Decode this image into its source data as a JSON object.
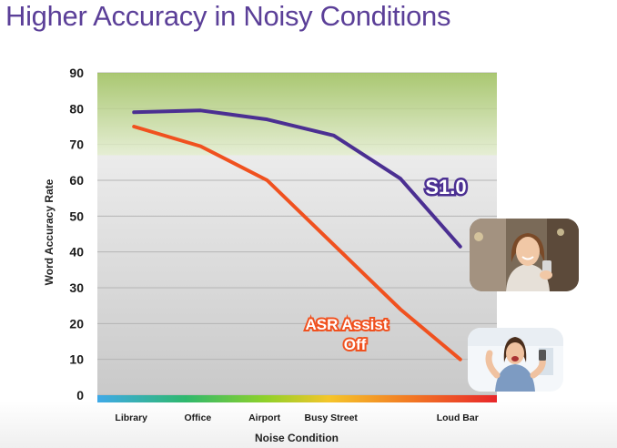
{
  "slide": {
    "title": "Higher Accuracy in Noisy Conditions"
  },
  "colors": {
    "title": "#5b3f98",
    "s1_line": "#4b2f92",
    "asr_line": "#f0511f",
    "highlight_band": "#b9d28a"
  },
  "chart_data": {
    "type": "line",
    "title": "",
    "xlabel": "Noise Condition",
    "ylabel": "Word Accuracy Rate",
    "ylim": [
      0,
      90
    ],
    "yticks": [
      0,
      10,
      20,
      30,
      40,
      50,
      60,
      70,
      80,
      90
    ],
    "categories": [
      "Library",
      "Office",
      "Airport",
      "Busy Street",
      "Loud Bar"
    ],
    "series": [
      {
        "name": "S1.0",
        "values": [
          79,
          79.5,
          77,
          72.5,
          60.5,
          41.5
        ],
        "x": [
          0.55,
          1.55,
          2.55,
          3.55,
          4.55,
          5.45
        ]
      },
      {
        "name": "ASR Assist Off",
        "values": [
          75,
          69.5,
          60,
          42,
          24,
          10
        ],
        "x": [
          0.55,
          1.55,
          2.55,
          3.55,
          4.55,
          5.45
        ]
      }
    ],
    "highlight_band": [
      67,
      90
    ],
    "grid": true
  },
  "icons": {
    "photo_top": "woman-smiling-phone-photo",
    "photo_bottom": "woman-cheering-phone-photo"
  }
}
